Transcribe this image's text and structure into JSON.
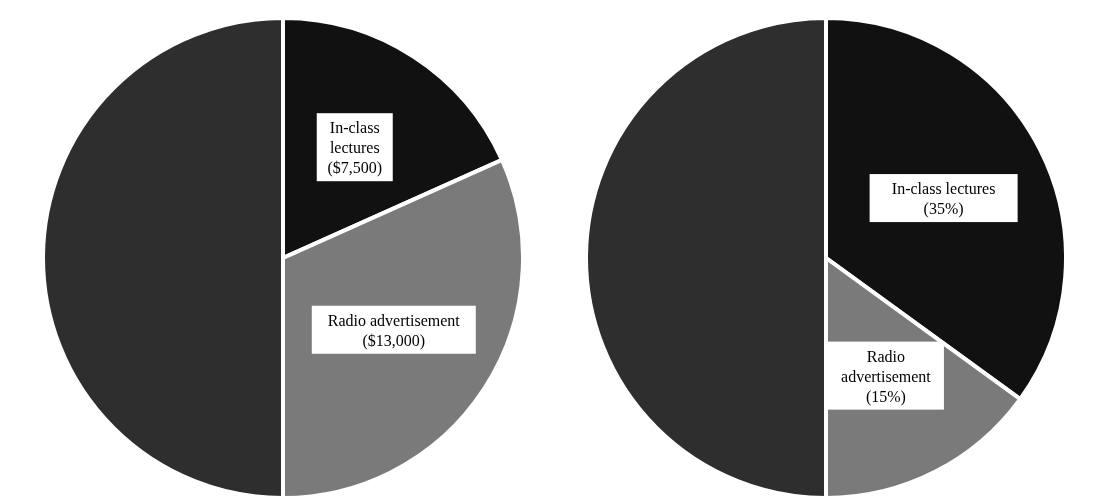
{
  "chart_data": [
    {
      "type": "pie",
      "categories": [
        "In-class lectures",
        "Radio advertisement",
        null
      ],
      "values": [
        7500,
        13000,
        20500
      ],
      "value_labels": [
        "($7,500)",
        "($13,000)",
        null
      ],
      "colors": [
        "#111111",
        "#7a7a7a",
        "#2e2e2e"
      ]
    },
    {
      "type": "pie",
      "categories": [
        "In-class lectures",
        "Radio advertisement",
        null
      ],
      "values": [
        35,
        15,
        50
      ],
      "value_labels": [
        "(35%)",
        "(15%)",
        null
      ],
      "colors": [
        "#111111",
        "#7a7a7a",
        "#2e2e2e"
      ]
    }
  ]
}
